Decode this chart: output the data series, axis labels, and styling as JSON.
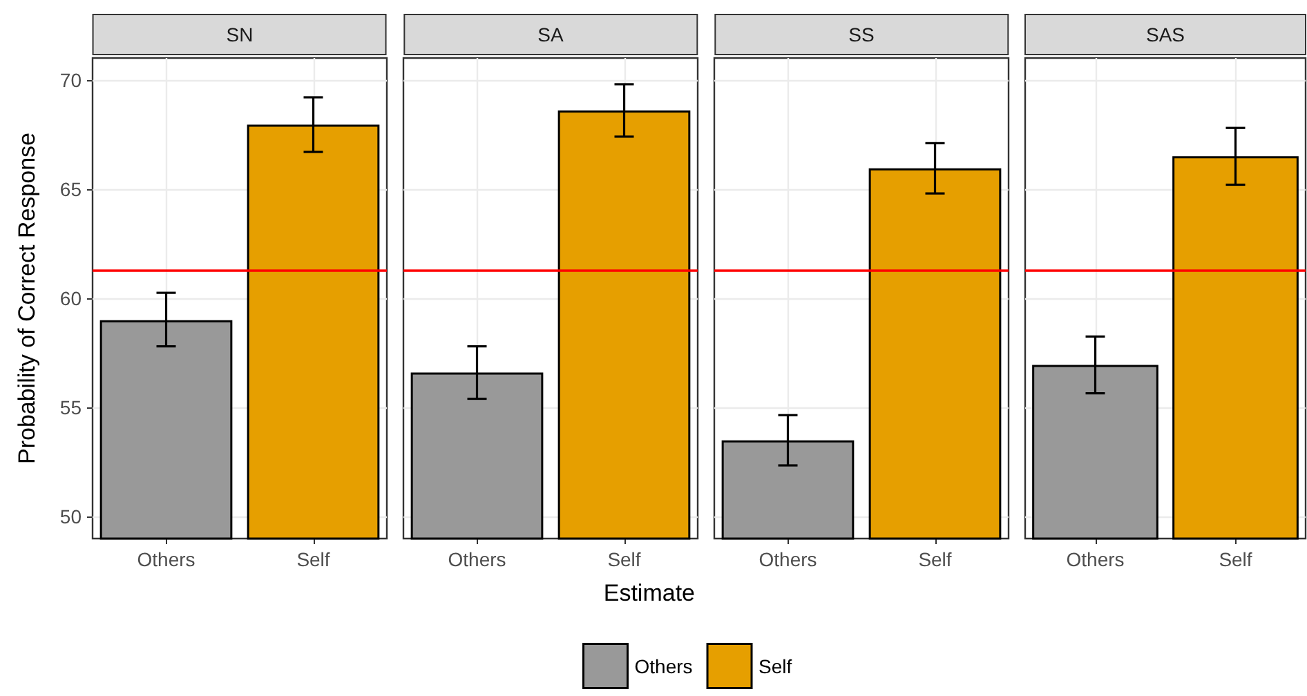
{
  "chart_data": [
    {
      "type": "bar",
      "title": "SN",
      "ylabel": "Probability of Correct Response",
      "legend": "bottom",
      "grid": true,
      "categories": [
        "Others",
        "Self"
      ],
      "ylim": [
        49,
        71
      ],
      "yticks": [
        50,
        55,
        60,
        65,
        70
      ],
      "ref_lines": [
        {
          "axis": "y",
          "value": 61.25,
          "color": "#ff0000"
        }
      ],
      "series": [
        {
          "name": "Others",
          "color": "#999999",
          "values": [
            59.0,
            null
          ],
          "errors": [
            [
              57.8,
              60.25
            ],
            null
          ]
        },
        {
          "name": "Self",
          "color": "#e69f00",
          "values": [
            null,
            67.95
          ],
          "errors": [
            null,
            [
              66.7,
              69.2
            ]
          ]
        }
      ]
    },
    {
      "type": "bar",
      "title": "SA",
      "xlabel": "Estimate",
      "tick_labels": "x",
      "grid": true,
      "categories": [
        "Others",
        "Self"
      ],
      "ylim": [
        49,
        71
      ],
      "yticks": [
        50,
        55,
        60,
        65,
        70
      ],
      "ref_lines": [
        {
          "axis": "y",
          "value": 61.25,
          "color": "#ff0000"
        }
      ],
      "series": [
        {
          "color": "#999999",
          "values": [
            56.6,
            null
          ],
          "errors": [
            [
              55.4,
              57.8
            ],
            null
          ]
        },
        {
          "color": "#e69f00",
          "values": [
            null,
            68.6
          ],
          "errors": [
            null,
            [
              67.4,
              69.8
            ]
          ]
        }
      ]
    },
    {
      "type": "bar",
      "title": "SS",
      "tick_labels": "x",
      "grid": true,
      "categories": [
        "Others",
        "Self"
      ],
      "ylim": [
        49,
        71
      ],
      "yticks": [
        50,
        55,
        60,
        65,
        70
      ],
      "ref_lines": [
        {
          "axis": "y",
          "value": 61.25,
          "color": "#ff0000"
        }
      ],
      "series": [
        {
          "color": "#999999",
          "values": [
            53.5,
            null
          ],
          "errors": [
            [
              52.35,
              54.65
            ],
            null
          ]
        },
        {
          "color": "#e69f00",
          "values": [
            null,
            65.95
          ],
          "errors": [
            null,
            [
              64.8,
              67.1
            ]
          ]
        }
      ]
    },
    {
      "type": "bar",
      "title": "SAS",
      "tick_labels": "x",
      "grid": true,
      "categories": [
        "Others",
        "Self"
      ],
      "ylim": [
        49,
        71
      ],
      "yticks": [
        50,
        55,
        60,
        65,
        70
      ],
      "ref_lines": [
        {
          "axis": "y",
          "value": 61.25,
          "color": "#ff0000"
        }
      ],
      "series": [
        {
          "color": "#999999",
          "values": [
            56.95,
            null
          ],
          "errors": [
            [
              55.65,
              58.25
            ],
            null
          ]
        },
        {
          "color": "#e69f00",
          "values": [
            null,
            66.5
          ],
          "errors": [
            null,
            [
              65.2,
              67.8
            ]
          ]
        }
      ]
    }
  ]
}
